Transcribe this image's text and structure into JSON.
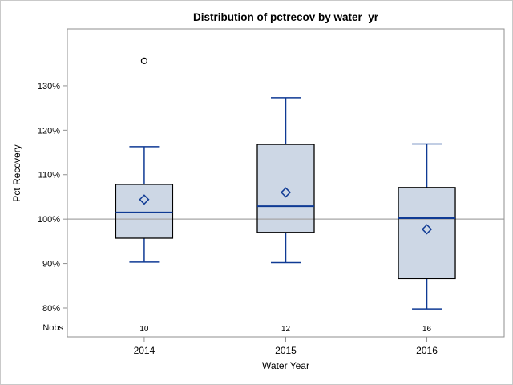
{
  "chart_data": {
    "type": "boxplot",
    "title": "Distribution of pctrecov by water_yr",
    "xlabel": "Water Year",
    "ylabel": "Pct Recovery",
    "nobs_label": "Nobs",
    "categories": [
      "2014",
      "2015",
      "2016"
    ],
    "nobs": [
      "10",
      "12",
      "16"
    ],
    "ylim": [
      73.5,
      142.8
    ],
    "yticks": [
      {
        "value": 80,
        "label": "80%"
      },
      {
        "value": 90,
        "label": "90%"
      },
      {
        "value": 100,
        "label": "100%"
      },
      {
        "value": 110,
        "label": "110%"
      },
      {
        "value": 120,
        "label": "120%"
      },
      {
        "value": 130,
        "label": "130%"
      }
    ],
    "reference_line": 100,
    "grid": "off",
    "legend": "none",
    "series": [
      {
        "category": "2014",
        "n": 10,
        "whisker_low": 90.3,
        "q1": 95.7,
        "median": 101.5,
        "mean": 104.4,
        "q3": 107.8,
        "whisker_high": 116.3,
        "outliers": [
          135.6
        ]
      },
      {
        "category": "2015",
        "n": 12,
        "whisker_low": 90.2,
        "q1": 97.0,
        "median": 102.9,
        "mean": 106.0,
        "q3": 116.8,
        "whisker_high": 127.3,
        "outliers": []
      },
      {
        "category": "2016",
        "n": 16,
        "whisker_low": 79.8,
        "q1": 86.6,
        "median": 100.2,
        "mean": 97.7,
        "q3": 107.1,
        "whisker_high": 116.9,
        "outliers": []
      }
    ],
    "colors": {
      "box_fill": "#cdd7e5",
      "box_stroke": "#000000",
      "line_blue": "#0f3a94",
      "frame_gray": "#8f8f8f",
      "reference_gray": "#a6a6a6",
      "outlier_stroke": "#000000",
      "window_border": "#c9c9c9"
    }
  }
}
